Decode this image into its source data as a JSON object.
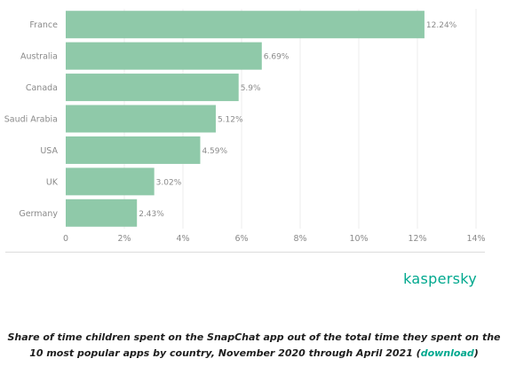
{
  "chart_data": {
    "type": "bar",
    "orientation": "horizontal",
    "categories": [
      "France",
      "Australia",
      "Canada",
      "Saudi Arabia",
      "USA",
      "UK",
      "Germany"
    ],
    "values": [
      12.24,
      6.69,
      5.9,
      5.12,
      4.59,
      3.02,
      2.43
    ],
    "value_labels": [
      "12.24%",
      "6.69%",
      "5.9%",
      "5.12%",
      "4.59%",
      "3.02%",
      "2.43%"
    ],
    "xlim": [
      0,
      14
    ],
    "x_ticks": [
      0,
      2,
      4,
      6,
      8,
      10,
      12,
      14
    ],
    "x_tick_labels": [
      "0",
      "2%",
      "4%",
      "6%",
      "8%",
      "10%",
      "12%",
      "14%"
    ],
    "bar_color": "#8fc9a9",
    "grid": true,
    "legend": "none"
  },
  "brand": "kaspersky",
  "caption": {
    "text": "Share of time children spent on the SnapChat app out of the total time they spent on the 10 most popular apps by country, November 2020 through April 2021 (",
    "link": "download",
    "suffix": ")"
  },
  "colors": {
    "accent": "#00a88e",
    "text": "#1f1f1f",
    "axis_text": "#8a8a8a"
  }
}
